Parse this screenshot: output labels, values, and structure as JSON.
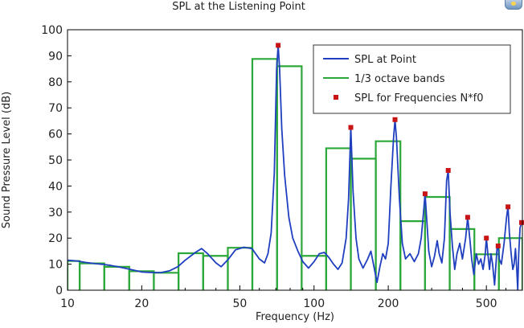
{
  "chart_data": {
    "type": "line",
    "title": "SPL at the Listening Point",
    "xlabel": "Frequency (Hz)",
    "ylabel": "Sound Pressure Level (dB)",
    "x_scale": "log",
    "xlim": [
      10,
      700
    ],
    "ylim": [
      0,
      100
    ],
    "x_ticks": [
      10,
      20,
      50,
      100,
      200,
      500
    ],
    "y_ticks": [
      0,
      10,
      20,
      30,
      40,
      50,
      60,
      70,
      80,
      90,
      100
    ],
    "legend_position": "top-right",
    "grid": false,
    "colors": {
      "spl_line": "#1f3fbf",
      "bands": "#2ca83a",
      "markers": "#c81414"
    },
    "series": [
      {
        "name": "SPL at Point",
        "kind": "line",
        "points": [
          [
            10,
            11.5
          ],
          [
            11,
            11.2
          ],
          [
            12,
            10.6
          ],
          [
            13,
            10.2
          ],
          [
            14,
            9.9
          ],
          [
            15,
            9.5
          ],
          [
            16,
            9.0
          ],
          [
            17,
            8.5
          ],
          [
            18,
            8.0
          ],
          [
            19,
            7.5
          ],
          [
            20,
            7.0
          ],
          [
            22,
            6.8
          ],
          [
            24,
            6.8
          ],
          [
            26,
            7.5
          ],
          [
            28,
            9.0
          ],
          [
            30,
            11.5
          ],
          [
            33,
            14.5
          ],
          [
            35,
            16.0
          ],
          [
            37,
            14.0
          ],
          [
            40,
            10.5
          ],
          [
            42,
            9.0
          ],
          [
            45,
            12.0
          ],
          [
            48,
            15.5
          ],
          [
            52,
            16.5
          ],
          [
            56,
            16.0
          ],
          [
            60,
            12.0
          ],
          [
            63,
            10.5
          ],
          [
            65,
            14.0
          ],
          [
            67,
            22.0
          ],
          [
            69,
            45.0
          ],
          [
            70.5,
            85.0
          ],
          [
            71.5,
            94.0
          ],
          [
            72.5,
            85.0
          ],
          [
            74,
            62.0
          ],
          [
            76,
            44.0
          ],
          [
            79,
            28.0
          ],
          [
            82,
            20.0
          ],
          [
            86,
            15.0
          ],
          [
            90,
            11.0
          ],
          [
            95,
            8.5
          ],
          [
            100,
            11.0
          ],
          [
            105,
            14.0
          ],
          [
            110,
            14.5
          ],
          [
            115,
            12.5
          ],
          [
            120,
            10.0
          ],
          [
            125,
            8.0
          ],
          [
            130,
            10.5
          ],
          [
            135,
            20.0
          ],
          [
            138,
            35.0
          ],
          [
            141,
            62.5
          ],
          [
            144,
            38.0
          ],
          [
            148,
            20.0
          ],
          [
            152,
            12.0
          ],
          [
            158,
            8.5
          ],
          [
            165,
            12.0
          ],
          [
            170,
            15.0
          ],
          [
            175,
            9.0
          ],
          [
            180,
            3.0
          ],
          [
            185,
            9.0
          ],
          [
            190,
            14.0
          ],
          [
            195,
            12.0
          ],
          [
            200,
            18.0
          ],
          [
            205,
            40.0
          ],
          [
            210,
            58.0
          ],
          [
            213,
            65.5
          ],
          [
            216,
            58.0
          ],
          [
            222,
            35.0
          ],
          [
            228,
            18.0
          ],
          [
            235,
            12.0
          ],
          [
            245,
            14.0
          ],
          [
            255,
            11.0
          ],
          [
            265,
            14.0
          ],
          [
            272,
            20.0
          ],
          [
            278,
            30.0
          ],
          [
            282,
            37.0
          ],
          [
            286,
            28.0
          ],
          [
            292,
            15.0
          ],
          [
            300,
            9.0
          ],
          [
            308,
            13.0
          ],
          [
            316,
            19.0
          ],
          [
            322,
            14.0
          ],
          [
            330,
            10.5
          ],
          [
            338,
            20.0
          ],
          [
            345,
            42.0
          ],
          [
            350,
            46.0
          ],
          [
            356,
            30.0
          ],
          [
            364,
            17.0
          ],
          [
            372,
            8.0
          ],
          [
            380,
            14.0
          ],
          [
            390,
            18.0
          ],
          [
            400,
            12.0
          ],
          [
            412,
            20.0
          ],
          [
            420,
            28.0
          ],
          [
            428,
            20.0
          ],
          [
            436,
            12.0
          ],
          [
            445,
            6.0
          ],
          [
            455,
            14.0
          ],
          [
            465,
            10.0
          ],
          [
            475,
            12.0
          ],
          [
            485,
            8.0
          ],
          [
            495,
            14.0
          ],
          [
            500,
            20.0
          ],
          [
            507,
            14.0
          ],
          [
            515,
            8.0
          ],
          [
            522,
            14.0
          ],
          [
            530,
            10.0
          ],
          [
            540,
            2.0
          ],
          [
            552,
            16.0
          ],
          [
            558,
            17.0
          ],
          [
            564,
            12.0
          ],
          [
            575,
            10.0
          ],
          [
            590,
            18.0
          ],
          [
            604,
            28.0
          ],
          [
            612,
            32.0
          ],
          [
            620,
            22.0
          ],
          [
            630,
            14.0
          ],
          [
            640,
            8.0
          ],
          [
            648,
            10.0
          ],
          [
            656,
            16.0
          ],
          [
            664,
            8.0
          ],
          [
            670,
            0.0
          ],
          [
            676,
            14.0
          ],
          [
            685,
            24.0
          ],
          [
            695,
            26.0
          ],
          [
            700,
            26.0
          ]
        ]
      },
      {
        "name": "1/3 octave bands",
        "kind": "step",
        "bands": [
          [
            8.91,
            11.2,
            11.2
          ],
          [
            11.2,
            14.1,
            10.3
          ],
          [
            14.1,
            17.8,
            9.0
          ],
          [
            17.8,
            22.4,
            7.3
          ],
          [
            22.4,
            28.2,
            6.7
          ],
          [
            28.2,
            35.5,
            14.2
          ],
          [
            35.5,
            44.7,
            13.2
          ],
          [
            44.7,
            56.2,
            16.3
          ],
          [
            56.2,
            70.8,
            88.8
          ],
          [
            70.8,
            89.1,
            86.0
          ],
          [
            89.1,
            112,
            13.2
          ],
          [
            112,
            141,
            54.5
          ],
          [
            141,
            178,
            50.5
          ],
          [
            178,
            224,
            57.2
          ],
          [
            224,
            282,
            26.5
          ],
          [
            282,
            355,
            35.8
          ],
          [
            355,
            447,
            23.5
          ],
          [
            447,
            562,
            13.8
          ],
          [
            562,
            708,
            20.0
          ]
        ]
      },
      {
        "name": "SPL for Frequencies N*f0",
        "kind": "scatter",
        "points": [
          [
            71.5,
            94.0
          ],
          [
            141,
            62.5
          ],
          [
            213,
            65.5
          ],
          [
            282,
            37.0
          ],
          [
            350,
            46.0
          ],
          [
            420,
            28.0
          ],
          [
            500,
            20.0
          ],
          [
            558,
            17.0
          ],
          [
            612,
            32.0
          ],
          [
            695,
            26.0
          ]
        ]
      }
    ]
  }
}
